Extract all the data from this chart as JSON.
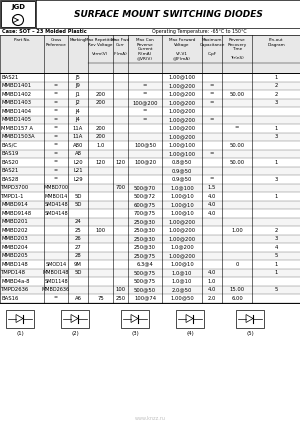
{
  "title": "SURFACE MOUNT SWITCHING DIODES",
  "case_info": "Case: SOT – 23 Molded Plastic",
  "temp_info": "Operating Temperature: -65°C to 150°C",
  "bg_color": "#ffffff",
  "col_headers_line1": [
    "",
    "",
    "",
    "Max Repetitive",
    "Max Fwd",
    "Max Con",
    "Max Forward",
    "Maximum",
    "Reverse",
    "Pin-out"
  ],
  "col_headers_line2": [
    "",
    "Cross",
    "",
    "Rev Voltage",
    "Curr",
    "Reverse",
    "Voltage",
    "Capacitance",
    "Recovery",
    "Diagram"
  ],
  "col_headers_line3": [
    "Part No.",
    "Reference",
    "Marking",
    "",
    "IF(mA)",
    "Current",
    "",
    "",
    "Time",
    ""
  ],
  "col_headers_line4": [
    "",
    "",
    "",
    "Vrrm(V)",
    "",
    "IR(mA)",
    "VF,V1",
    "C,pF",
    "Trr(nS)",
    ""
  ],
  "col_headers_line5": [
    "",
    "",
    "",
    "",
    "",
    "@VR(V)",
    "@IF(mA)",
    "",
    "",
    ""
  ],
  "rows": [
    [
      "BAS21",
      "",
      "J5",
      "",
      "",
      "",
      "1.00@100",
      "",
      "",
      "1"
    ],
    [
      "MMBD1401",
      "=",
      "J9",
      "",
      "",
      "=",
      "1.00@200",
      "=",
      "",
      "2"
    ],
    [
      "MMBD1402",
      "=",
      "J1",
      "200",
      "",
      "=",
      "1.00@200",
      "=",
      "50.00",
      "2"
    ],
    [
      "MMBD1403",
      "=",
      "J2",
      "200",
      "",
      "100@200",
      "1.00@200",
      "=",
      "",
      "3"
    ],
    [
      "MMBD1404",
      "=",
      "J4",
      "",
      "",
      "=",
      "1.00@200",
      "",
      "",
      ""
    ],
    [
      "MMBD1405",
      "=",
      "J4",
      "",
      "",
      "=",
      "1.00@200",
      "=",
      "",
      ""
    ],
    [
      "MMBD157 A",
      "=",
      "11A",
      "200",
      "",
      "",
      "1.00@200",
      "",
      "=",
      "1"
    ],
    [
      "MMBD1503A",
      "=",
      "11A",
      "200",
      "",
      "",
      "1.00@200",
      "",
      "",
      "3"
    ],
    [
      "BAS/C",
      "=",
      "A80",
      "1.0",
      "",
      "100@50",
      "1.00@100",
      "",
      "50.00",
      ""
    ],
    [
      "BAS19",
      "=",
      "A8",
      "",
      "",
      "",
      "1.00@100",
      "=",
      "",
      ""
    ],
    [
      "BAS20",
      "=",
      "L20",
      "120",
      "120",
      "100@20",
      "0.8@50",
      "",
      "50.00",
      "1"
    ],
    [
      "BAS21",
      "=",
      "L21",
      "",
      "",
      "",
      "0.9@50",
      "",
      "",
      ""
    ],
    [
      "BAS28",
      "=",
      "L29",
      "",
      "",
      "",
      "0.9@50",
      "=",
      "",
      "3"
    ],
    [
      "TMPD3700",
      "MMBD700",
      "",
      "",
      "700",
      "500@70",
      "1.0@100",
      "1.5",
      "",
      ""
    ],
    [
      "TMPD1-1",
      "MMBOI14",
      "5D",
      "",
      "",
      "500@72",
      "1.00@10",
      "4.0",
      "",
      "1"
    ],
    [
      "MMBD914",
      "SMD4148",
      "5D",
      "",
      "",
      "600@75",
      "1.00@10",
      "4.0",
      "",
      ""
    ],
    [
      "MMBD9148",
      "SMD4148",
      "",
      "",
      "",
      "700@75",
      "1.00@10",
      "4.0",
      "",
      ""
    ],
    [
      "MMBD201",
      "",
      "24",
      "",
      "",
      "250@30",
      "1.00@200",
      "",
      "",
      ""
    ],
    [
      "MMBD202",
      "",
      "25",
      "100",
      "",
      "250@30",
      "1.00@200",
      "",
      "1.00",
      "2"
    ],
    [
      "MMBD203",
      "",
      "26",
      "",
      "",
      "250@30",
      "1.00@200",
      "",
      "",
      "3"
    ],
    [
      "MMBD204",
      "",
      "27",
      "",
      "",
      "250@30",
      "1.0@200",
      "",
      "",
      "4"
    ],
    [
      "MMBD205",
      "",
      "28",
      "",
      "",
      "250@75",
      "1.00@200",
      "",
      "",
      "5"
    ],
    [
      "MMBD148",
      "SMOD14",
      "9M",
      "",
      "",
      "6.3@4",
      "1.00@10",
      "",
      "0",
      "1"
    ],
    [
      "TMPD148",
      "MMBOI148",
      "5D",
      "",
      "",
      "500@75",
      "1.0@10",
      "4.0",
      "",
      "1"
    ],
    [
      "MMBD4a-8",
      "SMD1148",
      "",
      "",
      "",
      "500@75",
      "1.0@10",
      "1.0",
      "",
      ""
    ],
    [
      "TMPD2636",
      "MMBD2636",
      "",
      "",
      "100",
      "500@50",
      "2.0@50",
      "4.0",
      "15.00",
      "5"
    ],
    [
      "BAS16",
      "=",
      "A6",
      "75",
      "250",
      "100@74",
      "1.00@50",
      "2.0",
      "6.00",
      ""
    ]
  ],
  "font_size": 3.8,
  "header_font_size": 3.0
}
